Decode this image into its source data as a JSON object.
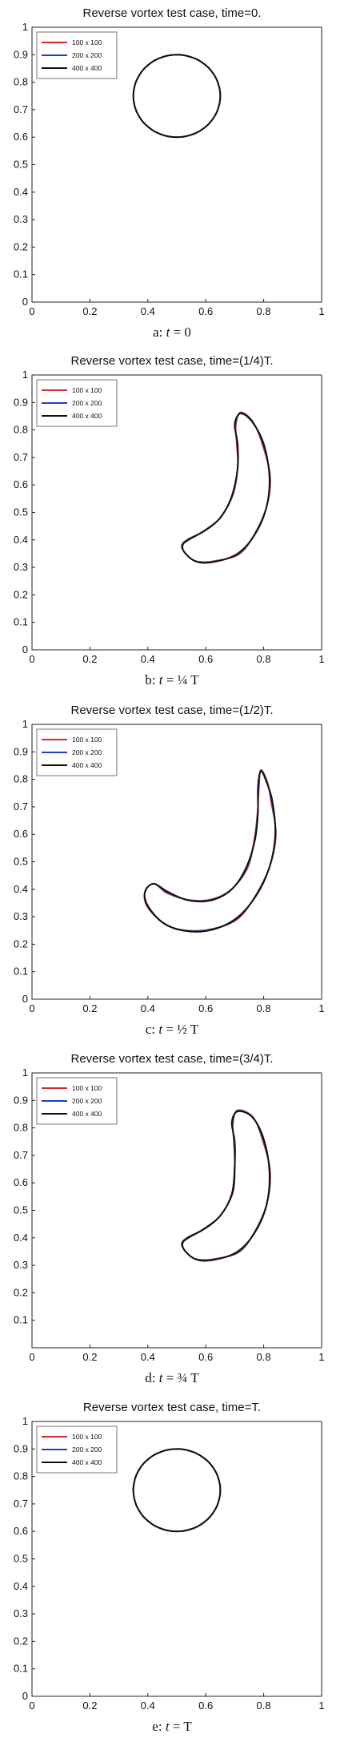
{
  "panels": [
    {
      "title": "Reverse vortex test case, time=0.",
      "caption": {
        "prefix": "a: ",
        "var": "t",
        "rhs": "= 0"
      },
      "chart_data": {
        "type": "line",
        "xlabel": "",
        "ylabel": "",
        "xlim": [
          0,
          1
        ],
        "ylim": [
          0,
          1
        ],
        "xticks": [
          "0",
          "0.2",
          "0.4",
          "0.6",
          "0.8",
          "1"
        ],
        "yticks": [
          "0",
          "0.1",
          "0.2",
          "0.3",
          "0.4",
          "0.5",
          "0.6",
          "0.7",
          "0.8",
          "0.9",
          "1"
        ],
        "legend_position": "top-left",
        "series": [
          {
            "name": "100 x 100",
            "color": "#d62728"
          },
          {
            "name": "200 x 200",
            "color": "#1f3fbf"
          },
          {
            "name": "400 x 400",
            "color": "#111111"
          }
        ],
        "shape": {
          "kind": "circle",
          "center": [
            0.5,
            0.75
          ],
          "radius": 0.15
        }
      }
    },
    {
      "title": "Reverse vortex test case, time=(1/4)T.",
      "caption": {
        "prefix": "b: ",
        "var": "t",
        "rhs": "= ¼ T"
      },
      "chart_data": {
        "type": "line",
        "xlabel": "",
        "ylabel": "",
        "xlim": [
          0,
          1
        ],
        "ylim": [
          0,
          1
        ],
        "xticks": [
          "0",
          "0.2",
          "0.4",
          "0.6",
          "0.8",
          "1"
        ],
        "yticks": [
          "0",
          "0.1",
          "0.2",
          "0.3",
          "0.4",
          "0.5",
          "0.6",
          "0.7",
          "0.8",
          "0.9",
          "1"
        ],
        "legend_position": "top-left",
        "series": [
          {
            "name": "100 x 100",
            "color": "#d62728"
          },
          {
            "name": "200 x 200",
            "color": "#1f3fbf"
          },
          {
            "name": "400 x 400",
            "color": "#111111"
          }
        ],
        "shape": {
          "kind": "closed_curve",
          "points": [
            [
              0.72,
              0.86
            ],
            [
              0.76,
              0.83
            ],
            [
              0.8,
              0.75
            ],
            [
              0.82,
              0.63
            ],
            [
              0.81,
              0.52
            ],
            [
              0.77,
              0.42
            ],
            [
              0.71,
              0.35
            ],
            [
              0.63,
              0.32
            ],
            [
              0.57,
              0.32
            ],
            [
              0.53,
              0.35
            ],
            [
              0.52,
              0.38
            ],
            [
              0.54,
              0.4
            ],
            [
              0.59,
              0.43
            ],
            [
              0.65,
              0.48
            ],
            [
              0.69,
              0.56
            ],
            [
              0.71,
              0.66
            ],
            [
              0.71,
              0.75
            ],
            [
              0.7,
              0.82
            ]
          ]
        }
      }
    },
    {
      "title": "Reverse vortex test case, time=(1/2)T.",
      "caption": {
        "prefix": "c: ",
        "var": "t",
        "rhs": "= ½ T"
      },
      "chart_data": {
        "type": "line",
        "xlabel": "",
        "ylabel": "",
        "xlim": [
          0,
          1
        ],
        "ylim": [
          0,
          1
        ],
        "xticks": [
          "0",
          "0.2",
          "0.4",
          "0.6",
          "0.8",
          "1"
        ],
        "yticks": [
          "0",
          "0.1",
          "0.2",
          "0.3",
          "0.4",
          "0.5",
          "0.6",
          "0.7",
          "0.8",
          "0.9",
          "1"
        ],
        "legend_position": "top-left",
        "series": [
          {
            "name": "100 x 100",
            "color": "#d62728"
          },
          {
            "name": "200 x 200",
            "color": "#1f3fbf"
          },
          {
            "name": "400 x 400",
            "color": "#111111"
          }
        ],
        "shape": {
          "kind": "closed_curve",
          "points": [
            [
              0.79,
              0.83
            ],
            [
              0.81,
              0.79
            ],
            [
              0.83,
              0.72
            ],
            [
              0.84,
              0.6
            ],
            [
              0.82,
              0.48
            ],
            [
              0.77,
              0.37
            ],
            [
              0.7,
              0.29
            ],
            [
              0.61,
              0.25
            ],
            [
              0.52,
              0.25
            ],
            [
              0.45,
              0.28
            ],
            [
              0.4,
              0.34
            ],
            [
              0.39,
              0.39
            ],
            [
              0.42,
              0.42
            ],
            [
              0.47,
              0.39
            ],
            [
              0.54,
              0.36
            ],
            [
              0.62,
              0.36
            ],
            [
              0.69,
              0.4
            ],
            [
              0.74,
              0.48
            ],
            [
              0.77,
              0.58
            ],
            [
              0.78,
              0.68
            ],
            [
              0.78,
              0.77
            ]
          ]
        }
      }
    },
    {
      "title": "Reverse vortex test case, time=(3/4)T.",
      "caption": {
        "prefix": "d: ",
        "var": "t",
        "rhs": "= ¾ T"
      },
      "chart_data": {
        "type": "line",
        "xlabel": "",
        "ylabel": "",
        "xlim": [
          0,
          1
        ],
        "ylim": [
          0,
          1
        ],
        "xticks": [
          "0",
          "0.2",
          "0.4",
          "0.6",
          "0.8",
          "1"
        ],
        "yticks": [
          "0.1",
          "0.2",
          "0.3",
          "0.4",
          "0.5",
          "0.6",
          "0.7",
          "0.8",
          "0.9",
          "1"
        ],
        "legend_position": "top-left",
        "series": [
          {
            "name": "100 x 100",
            "color": "#d62728"
          },
          {
            "name": "200 x 200",
            "color": "#1f3fbf"
          },
          {
            "name": "400 x 400",
            "color": "#111111"
          }
        ],
        "shape": {
          "kind": "closed_curve",
          "points": [
            [
              0.71,
              0.86
            ],
            [
              0.76,
              0.84
            ],
            [
              0.8,
              0.76
            ],
            [
              0.82,
              0.64
            ],
            [
              0.81,
              0.52
            ],
            [
              0.77,
              0.42
            ],
            [
              0.71,
              0.35
            ],
            [
              0.63,
              0.32
            ],
            [
              0.57,
              0.32
            ],
            [
              0.53,
              0.35
            ],
            [
              0.52,
              0.38
            ],
            [
              0.54,
              0.4
            ],
            [
              0.59,
              0.43
            ],
            [
              0.65,
              0.48
            ],
            [
              0.69,
              0.56
            ],
            [
              0.7,
              0.66
            ],
            [
              0.7,
              0.75
            ],
            [
              0.69,
              0.82
            ]
          ]
        }
      }
    },
    {
      "title": "Reverse vortex test case, time=T.",
      "caption": {
        "prefix": "e: ",
        "var": "t",
        "rhs": "= T"
      },
      "chart_data": {
        "type": "line",
        "xlabel": "",
        "ylabel": "",
        "xlim": [
          0,
          1
        ],
        "ylim": [
          0,
          1
        ],
        "xticks": [
          "0",
          "0.2",
          "0.4",
          "0.6",
          "0.8",
          "1"
        ],
        "yticks": [
          "0",
          "0.1",
          "0.2",
          "0.3",
          "0.4",
          "0.5",
          "0.6",
          "0.7",
          "0.8",
          "0.9",
          "1"
        ],
        "legend_position": "top-left",
        "series": [
          {
            "name": "100 x 100",
            "color": "#d62728"
          },
          {
            "name": "200 x 200",
            "color": "#1f3fbf"
          },
          {
            "name": "400 x 400",
            "color": "#111111"
          }
        ],
        "shape": {
          "kind": "circle",
          "center": [
            0.5,
            0.75
          ],
          "radius": 0.15
        }
      }
    }
  ]
}
